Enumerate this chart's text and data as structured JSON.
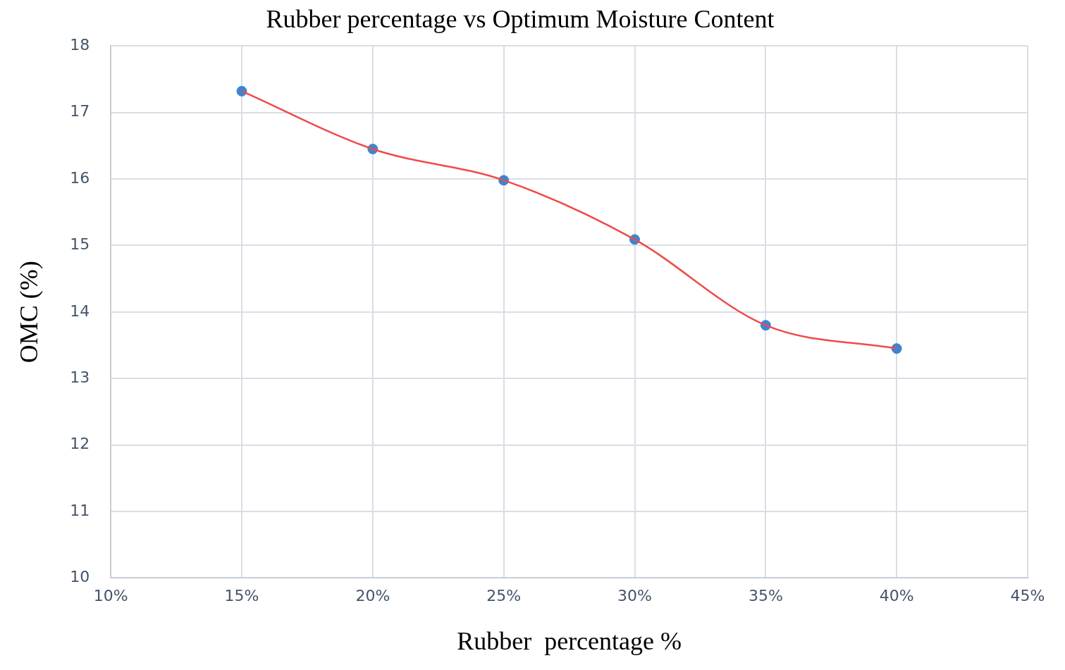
{
  "chart_data": {
    "type": "line",
    "title": "Rubber percentage vs Optimum Moisture Content",
    "xlabel": "Rubber  percentage %",
    "ylabel": "OMC (%)",
    "x": [
      15,
      20,
      25,
      30,
      35,
      40
    ],
    "series": [
      {
        "type": "line",
        "color": "#f04a4a",
        "marker": "none",
        "values": [
          17.32,
          16.45,
          15.98,
          15.09,
          13.8,
          13.45
        ]
      },
      {
        "type": "scatter",
        "color": "#3c85d0",
        "marker": "circle",
        "values": [
          17.32,
          16.45,
          15.98,
          15.09,
          13.8,
          13.45
        ]
      }
    ],
    "xlim": [
      10,
      45
    ],
    "xticks": [
      {
        "value": 10,
        "label": "10%"
      },
      {
        "value": 15,
        "label": "15%"
      },
      {
        "value": 20,
        "label": "20%"
      },
      {
        "value": 25,
        "label": "25%"
      },
      {
        "value": 30,
        "label": "30%"
      },
      {
        "value": 35,
        "label": "35%"
      },
      {
        "value": 40,
        "label": "40%"
      },
      {
        "value": 45,
        "label": "45%"
      }
    ],
    "ylim": [
      10,
      18
    ],
    "yticks": [
      10,
      11,
      12,
      13,
      14,
      15,
      16,
      17,
      18
    ],
    "grid": true,
    "legend": false
  }
}
